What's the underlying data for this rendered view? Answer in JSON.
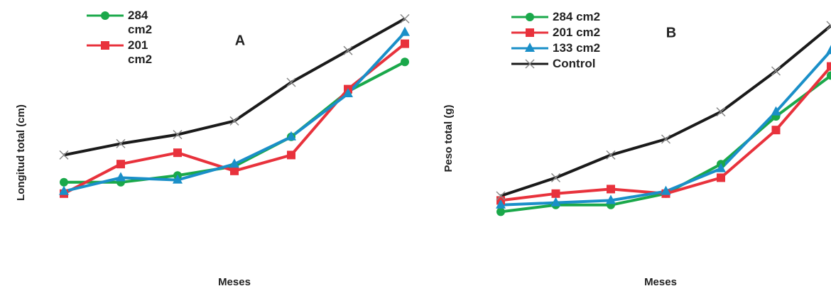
{
  "chart_data": [
    {
      "type": "line",
      "title": "A",
      "xlabel": "Meses",
      "ylabel": "Longitud total (cm)",
      "categories": [
        null,
        null,
        null,
        null,
        null,
        null,
        null
      ],
      "ylim": [
        0,
        100
      ],
      "series": [
        {
          "name": "284 cm2",
          "color": "#1aa84a",
          "marker": "circle",
          "values": [
            26,
            26,
            29,
            33,
            46,
            66,
            79
          ]
        },
        {
          "name": "201 cm2",
          "color": "#e8323c",
          "marker": "square",
          "values": [
            21,
            34,
            39,
            31,
            38,
            67,
            87
          ]
        },
        {
          "color": "#1a8fc8",
          "marker": "triangle",
          "values": [
            22,
            28,
            27,
            34,
            46,
            65,
            92
          ]
        },
        {
          "color": "#1a1a1a",
          "marker": "x",
          "values": [
            38,
            43,
            47,
            53,
            70,
            84,
            98
          ]
        }
      ]
    },
    {
      "type": "line",
      "title": "B",
      "xlabel": "Meses",
      "ylabel": "Peso total (g)",
      "categories": [
        null,
        null,
        null,
        null,
        null,
        null,
        null
      ],
      "ylim": [
        0,
        100
      ],
      "series": [
        {
          "name": "284 cm2",
          "color": "#1aa84a",
          "marker": "circle",
          "values": [
            13,
            16,
            16,
            21,
            34,
            55,
            73
          ]
        },
        {
          "name": "201 cm2",
          "color": "#e8323c",
          "marker": "square",
          "values": [
            18,
            21,
            23,
            21,
            28,
            49,
            77
          ]
        },
        {
          "name": "133 cm2",
          "color": "#1a8fc8",
          "marker": "triangle",
          "values": [
            16,
            17,
            18,
            22,
            32,
            57,
            84
          ]
        },
        {
          "name": "Control",
          "color": "#1a1a1a",
          "marker": "x",
          "values": [
            20,
            28,
            38,
            45,
            57,
            75,
            95
          ]
        }
      ]
    }
  ]
}
